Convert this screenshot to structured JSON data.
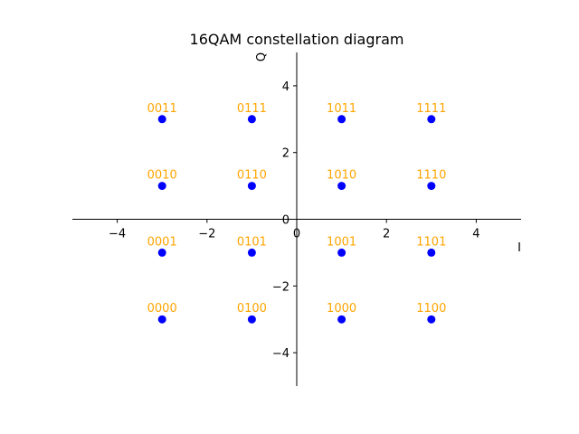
{
  "chart_data": {
    "type": "scatter",
    "title": "16QAM constellation diagram",
    "xlabel": "I",
    "ylabel": "Q",
    "xlim": [
      -5,
      5
    ],
    "ylim": [
      -5,
      5
    ],
    "xticks": [
      -4,
      -2,
      0,
      2,
      4
    ],
    "yticks": [
      -4,
      -2,
      0,
      2,
      4
    ],
    "grid": false,
    "spines": "centered",
    "points": [
      {
        "x": -3,
        "y": -3,
        "label": "0000"
      },
      {
        "x": -3,
        "y": -1,
        "label": "0001"
      },
      {
        "x": -3,
        "y": 1,
        "label": "0010"
      },
      {
        "x": -3,
        "y": 3,
        "label": "0011"
      },
      {
        "x": -1,
        "y": -3,
        "label": "0100"
      },
      {
        "x": -1,
        "y": -1,
        "label": "0101"
      },
      {
        "x": -1,
        "y": 1,
        "label": "0110"
      },
      {
        "x": -1,
        "y": 3,
        "label": "0111"
      },
      {
        "x": 1,
        "y": -3,
        "label": "1000"
      },
      {
        "x": 1,
        "y": -1,
        "label": "1001"
      },
      {
        "x": 1,
        "y": 1,
        "label": "1010"
      },
      {
        "x": 1,
        "y": 3,
        "label": "1011"
      },
      {
        "x": 3,
        "y": -3,
        "label": "1100"
      },
      {
        "x": 3,
        "y": -1,
        "label": "1101"
      },
      {
        "x": 3,
        "y": 1,
        "label": "1110"
      },
      {
        "x": 3,
        "y": 3,
        "label": "1111"
      }
    ],
    "colors": {
      "marker": "#0000ff",
      "label": "#ffa500",
      "axis": "#000000"
    }
  }
}
